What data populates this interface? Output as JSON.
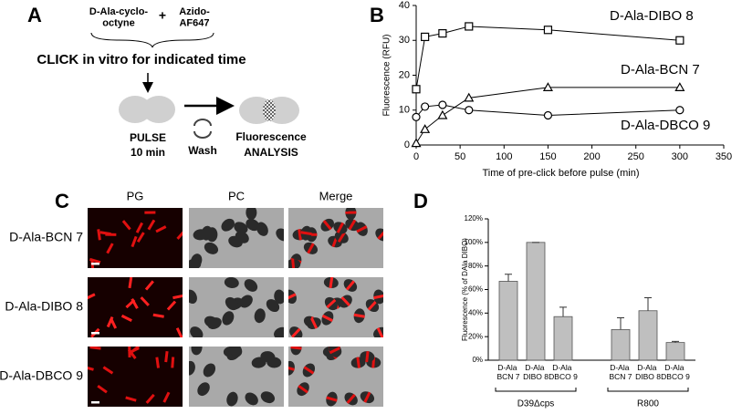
{
  "panel_a": {
    "letter": "A",
    "reagent_1": "D-Ala-cyclo-octyne",
    "plus": "+",
    "reagent_2": "Azido-AF647",
    "click_step": "CLICK in vitro for indicated time",
    "pulse": "PULSE",
    "pulse_time": "10 min",
    "wash": "Wash",
    "analysis_1": "Fluorescence",
    "analysis_2": "ANALYSIS"
  },
  "panel_c": {
    "letter": "C",
    "columns": [
      "PG",
      "PC",
      "Merge"
    ],
    "rows": [
      "D-Ala-BCN 7",
      "D-Ala-DIBO 8",
      "D-Ala-DBCO 9"
    ]
  },
  "chart_data": [
    {
      "type": "line",
      "label": "B",
      "x_label": "Time of pre-click before pulse (min)",
      "y_label": "Fluorescence (RFU)",
      "x": [
        0,
        10,
        30,
        60,
        150,
        300
      ],
      "series": [
        {
          "name": "D-Ala-DIBO 8",
          "color": "#000000",
          "marker": "square",
          "values": [
            16,
            31,
            32,
            34,
            33,
            30
          ]
        },
        {
          "name": "D-Ala-BCN 7",
          "color": "#000000",
          "marker": "triangle",
          "values": [
            0.5,
            4.5,
            8.5,
            13.5,
            16.5,
            16.5
          ]
        },
        {
          "name": "D-Ala-DBCO 9",
          "color": "#000000",
          "marker": "circle",
          "values": [
            8,
            11,
            11.5,
            10,
            8.5,
            10
          ]
        }
      ],
      "xlim": [
        0,
        350
      ],
      "xticks": [
        0,
        50,
        100,
        150,
        200,
        250,
        300,
        350
      ],
      "ylim": [
        0,
        40
      ],
      "yticks": [
        0,
        10,
        20,
        30,
        40
      ]
    },
    {
      "type": "bar",
      "label": "D",
      "y_label": "Fluorescence (% of DAla DIBO)",
      "categories": [
        "D-Ala BCN 7",
        "D-Ala DIBO 8",
        "D-Ala DBCO 9",
        "D-Ala BCN 7",
        "D-Ala DIBO 8",
        "D-Ala DBCO 9"
      ],
      "groups": [
        "D39Δcps",
        "R800"
      ],
      "values": [
        67,
        100,
        37,
        26,
        42,
        15
      ],
      "errors": [
        6,
        0,
        8,
        10,
        11,
        1
      ],
      "color": "#bfbfbf",
      "ylim": [
        0,
        120
      ],
      "yticks": [
        {
          "value": 0,
          "label": "0%"
        },
        {
          "value": 20,
          "label": "20%"
        },
        {
          "value": 40,
          "label": "40%"
        },
        {
          "value": 60,
          "label": "60%"
        },
        {
          "value": 80,
          "label": "80%"
        },
        {
          "value": 100,
          "label": "100%"
        },
        {
          "value": 120,
          "label": "120%"
        }
      ]
    }
  ]
}
